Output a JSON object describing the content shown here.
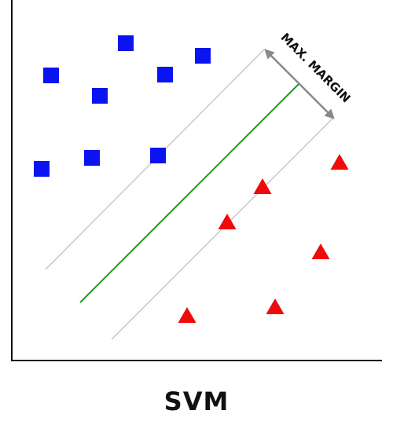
{
  "labels": {
    "margin": "MAX. MARGIN",
    "caption": "SVM"
  },
  "colors": {
    "class_a": "#0a14f0",
    "class_b": "#f00a0a",
    "hyperplane": "#1a9a1a",
    "margin_lines": "#cccccc",
    "arrow": "#888888",
    "axis": "#111111"
  },
  "diagram_data": {
    "class_a": {
      "shape": "square",
      "points": [
        [
          160,
          55
        ],
        [
          258,
          71
        ],
        [
          65,
          96
        ],
        [
          210,
          95
        ],
        [
          127,
          122
        ],
        [
          53,
          215
        ],
        [
          117,
          201
        ],
        [
          201,
          198
        ]
      ]
    },
    "class_b": {
      "shape": "triangle",
      "points": [
        [
          432,
          206
        ],
        [
          334,
          237
        ],
        [
          289,
          282
        ],
        [
          408,
          320
        ],
        [
          350,
          390
        ],
        [
          238,
          401
        ]
      ]
    },
    "hyperplane": [
      [
        102,
        385
      ],
      [
        380,
        107
      ]
    ],
    "margin_lines": [
      [
        [
          58,
          343
        ],
        [
          336,
          63
        ]
      ],
      [
        [
          142,
          432
        ],
        [
          424,
          150
        ]
      ]
    ]
  }
}
